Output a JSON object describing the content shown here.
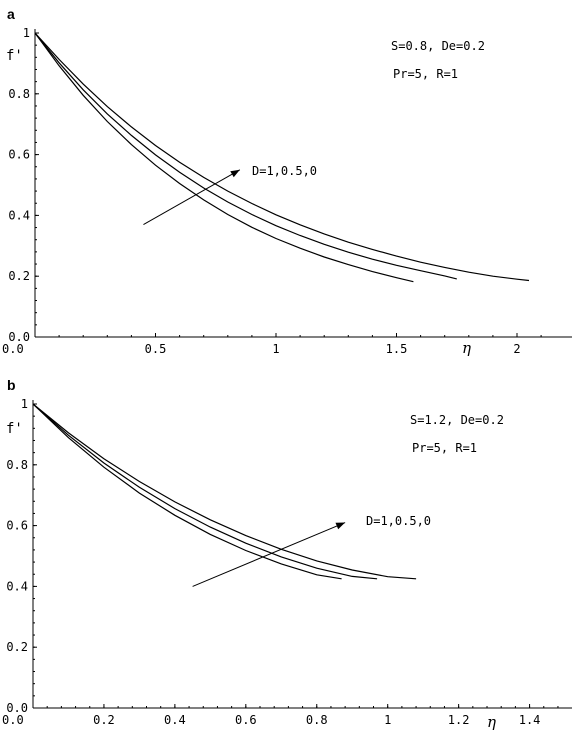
{
  "chart_data": [
    {
      "type": "line",
      "panel_label": "a",
      "ylabel": "f'",
      "xlabel": "η",
      "xlim": [
        0,
        2.2
      ],
      "ylim": [
        0,
        1
      ],
      "x_ticks": [
        {
          "v": 0,
          "label": "0.0"
        },
        {
          "v": 0.5,
          "label": "0.5"
        },
        {
          "v": 1,
          "label": "1"
        },
        {
          "v": 1.5,
          "label": "1.5"
        },
        {
          "v": 2,
          "label": "2"
        }
      ],
      "y_ticks": [
        {
          "v": 0,
          "label": "0.0"
        },
        {
          "v": 0.2,
          "label": "0.2"
        },
        {
          "v": 0.4,
          "label": "0.4"
        },
        {
          "v": 0.6,
          "label": "0.6"
        },
        {
          "v": 0.8,
          "label": "0.8"
        },
        {
          "v": 1,
          "label": "1"
        }
      ],
      "params": [
        "S=0.8, De=0.2",
        "Pr=5, R=1"
      ],
      "arrow_label": "D=1,0.5,0",
      "arrow": {
        "from": [
          0.45,
          0.37
        ],
        "to": [
          0.85,
          0.55
        ]
      },
      "series": [
        {
          "x": [
            0,
            0.1,
            0.2,
            0.3,
            0.4,
            0.5,
            0.6,
            0.7,
            0.8,
            0.9,
            1.0,
            1.1,
            1.2,
            1.3,
            1.4,
            1.5,
            1.57
          ],
          "y": [
            1.0,
            0.892,
            0.795,
            0.709,
            0.633,
            0.565,
            0.505,
            0.451,
            0.403,
            0.361,
            0.324,
            0.292,
            0.263,
            0.238,
            0.215,
            0.195,
            0.182
          ]
        },
        {
          "x": [
            0,
            0.1,
            0.2,
            0.3,
            0.4,
            0.5,
            0.6,
            0.7,
            0.8,
            0.9,
            1.0,
            1.1,
            1.2,
            1.3,
            1.4,
            1.5,
            1.6,
            1.7,
            1.75
          ],
          "y": [
            1.0,
            0.902,
            0.813,
            0.734,
            0.663,
            0.599,
            0.542,
            0.49,
            0.444,
            0.403,
            0.366,
            0.334,
            0.305,
            0.279,
            0.256,
            0.236,
            0.218,
            0.201,
            0.191
          ]
        },
        {
          "x": [
            0,
            0.1,
            0.2,
            0.3,
            0.4,
            0.5,
            0.6,
            0.7,
            0.8,
            0.9,
            1.0,
            1.1,
            1.2,
            1.3,
            1.4,
            1.5,
            1.6,
            1.7,
            1.8,
            1.9,
            2.0,
            2.05
          ],
          "y": [
            1.0,
            0.913,
            0.832,
            0.758,
            0.691,
            0.63,
            0.575,
            0.525,
            0.48,
            0.439,
            0.402,
            0.369,
            0.339,
            0.312,
            0.288,
            0.266,
            0.246,
            0.229,
            0.213,
            0.2,
            0.19,
            0.186
          ]
        }
      ]
    },
    {
      "type": "line",
      "panel_label": "b",
      "ylabel": "f'",
      "xlabel": "η",
      "xlim": [
        0,
        1.5
      ],
      "ylim": [
        0,
        1
      ],
      "x_ticks": [
        {
          "v": 0,
          "label": "0.0"
        },
        {
          "v": 0.2,
          "label": "0.2"
        },
        {
          "v": 0.4,
          "label": "0.4"
        },
        {
          "v": 0.6,
          "label": "0.6"
        },
        {
          "v": 0.8,
          "label": "0.8"
        },
        {
          "v": 1,
          "label": "1"
        },
        {
          "v": 1.2,
          "label": "1.2"
        },
        {
          "v": 1.4,
          "label": "1.4"
        }
      ],
      "y_ticks": [
        {
          "v": 0,
          "label": "0.0"
        },
        {
          "v": 0.2,
          "label": "0.2"
        },
        {
          "v": 0.4,
          "label": "0.4"
        },
        {
          "v": 0.6,
          "label": "0.6"
        },
        {
          "v": 0.8,
          "label": "0.8"
        },
        {
          "v": 1,
          "label": "1"
        }
      ],
      "params": [
        "S=1.2, De=0.2",
        "Pr=5, R=1"
      ],
      "arrow_label": "D=1,0.5,0",
      "arrow": {
        "from": [
          0.45,
          0.4
        ],
        "to": [
          0.88,
          0.61
        ]
      },
      "series": [
        {
          "x": [
            0,
            0.1,
            0.2,
            0.3,
            0.4,
            0.5,
            0.6,
            0.7,
            0.8,
            0.87
          ],
          "y": [
            1.0,
            0.889,
            0.792,
            0.707,
            0.634,
            0.571,
            0.518,
            0.474,
            0.438,
            0.425
          ]
        },
        {
          "x": [
            0,
            0.1,
            0.2,
            0.3,
            0.4,
            0.5,
            0.6,
            0.7,
            0.8,
            0.9,
            0.97
          ],
          "y": [
            1.0,
            0.897,
            0.806,
            0.726,
            0.656,
            0.595,
            0.542,
            0.497,
            0.46,
            0.433,
            0.425
          ]
        },
        {
          "x": [
            0,
            0.1,
            0.2,
            0.3,
            0.4,
            0.5,
            0.6,
            0.7,
            0.8,
            0.9,
            1.0,
            1.08
          ],
          "y": [
            1.0,
            0.905,
            0.82,
            0.745,
            0.678,
            0.619,
            0.567,
            0.522,
            0.484,
            0.454,
            0.432,
            0.425
          ]
        }
      ]
    }
  ]
}
